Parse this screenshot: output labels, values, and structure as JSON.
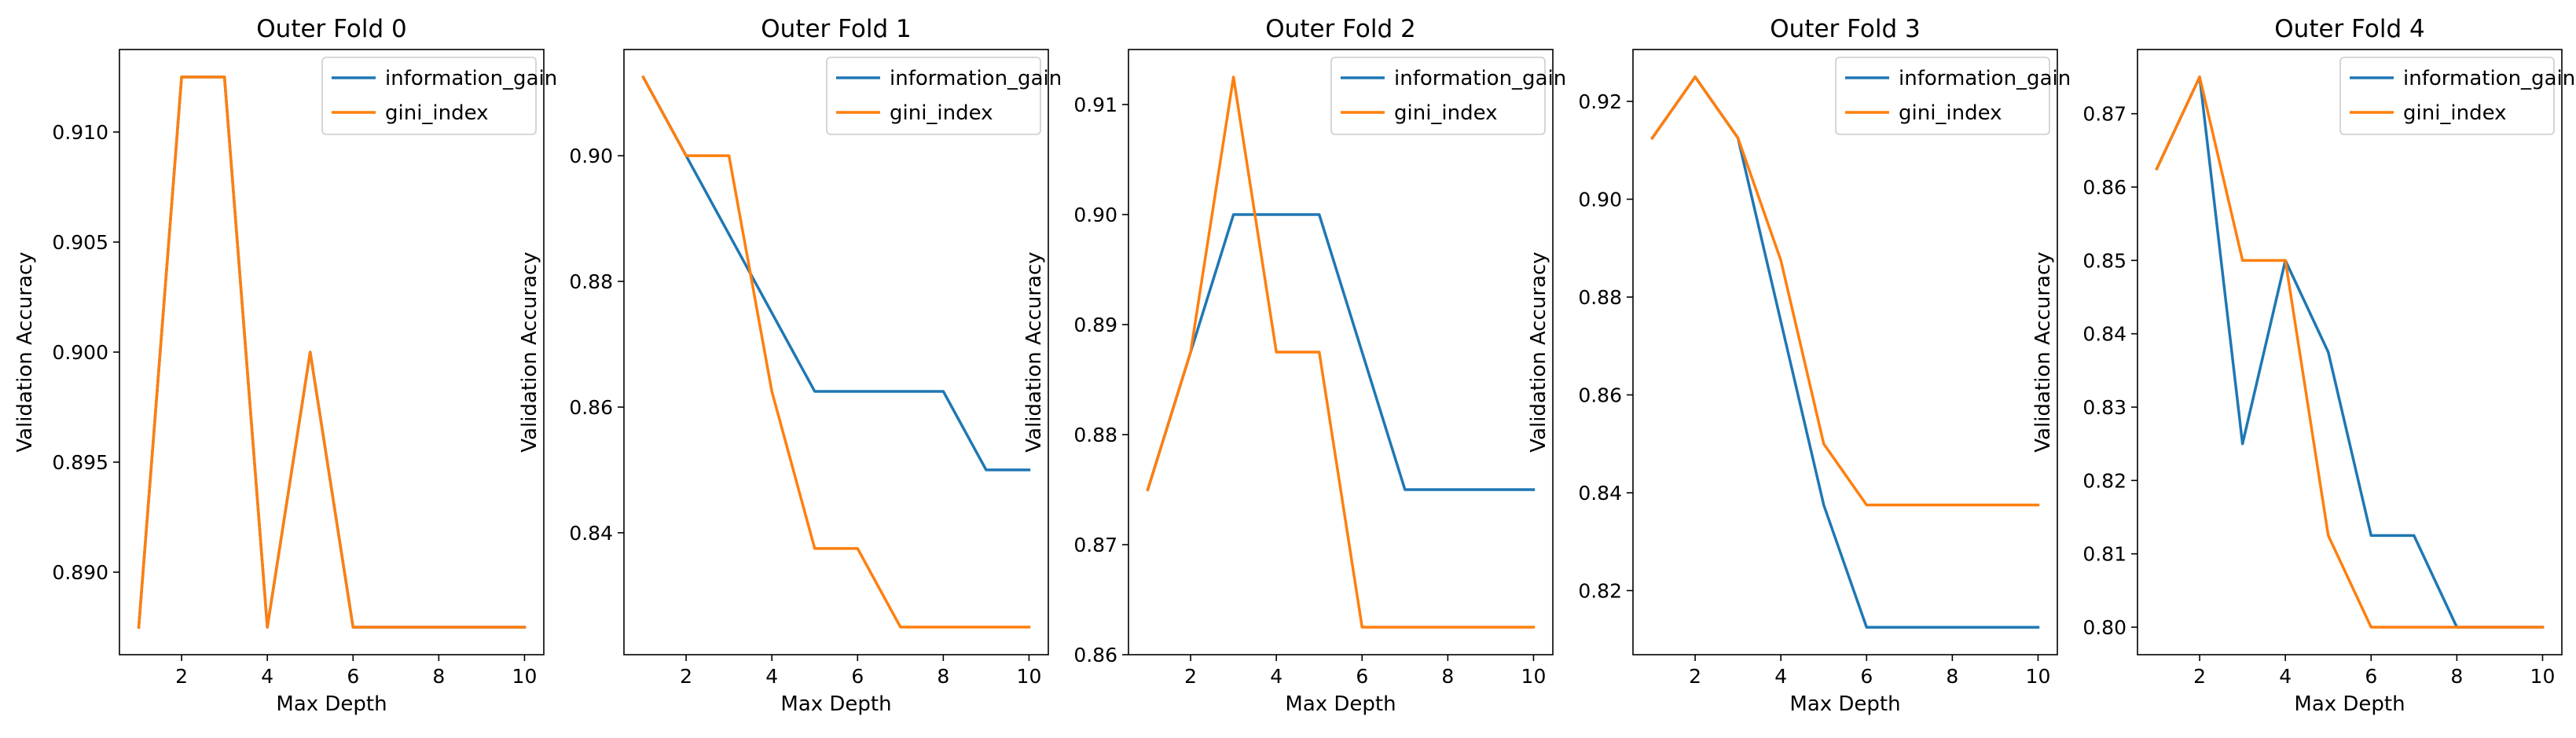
{
  "chart_data": [
    {
      "type": "line",
      "title": "Outer Fold 0",
      "xlabel": "Max Depth",
      "ylabel": "Validation Accuracy",
      "x": [
        1,
        2,
        3,
        4,
        5,
        6,
        7,
        8,
        9,
        10
      ],
      "series": [
        {
          "name": "information_gain",
          "color": "#1f77b4",
          "values": [
            0.8875,
            0.9125,
            0.9125,
            0.8875,
            0.9,
            0.8875,
            0.8875,
            0.8875,
            0.8875,
            0.8875
          ]
        },
        {
          "name": "gini_index",
          "color": "#ff7f0e",
          "values": [
            0.8875,
            0.9125,
            0.9125,
            0.8875,
            0.9,
            0.8875,
            0.8875,
            0.8875,
            0.8875,
            0.8875
          ]
        }
      ],
      "xlim": [
        0.55,
        10.45
      ],
      "ylim": [
        0.88625,
        0.91375
      ],
      "xticks": [
        2,
        4,
        6,
        8,
        10
      ],
      "xtick_labels": [
        "2",
        "4",
        "6",
        "8",
        "10"
      ],
      "yticks": [
        0.89,
        0.895,
        0.9,
        0.905,
        0.91
      ],
      "ytick_labels": [
        "0.890",
        "0.895",
        "0.900",
        "0.905",
        "0.910"
      ],
      "legend": "top-right",
      "grid": false
    },
    {
      "type": "line",
      "title": "Outer Fold 1",
      "xlabel": "Max Depth",
      "ylabel": "Validation Accuracy",
      "x": [
        1,
        2,
        3,
        4,
        5,
        6,
        7,
        8,
        9,
        10
      ],
      "series": [
        {
          "name": "information_gain",
          "color": "#1f77b4",
          "values": [
            0.9125,
            0.9,
            0.8875,
            0.875,
            0.8625,
            0.8625,
            0.8625,
            0.8625,
            0.85,
            0.85
          ]
        },
        {
          "name": "gini_index",
          "color": "#ff7f0e",
          "values": [
            0.9125,
            0.9,
            0.9,
            0.8625,
            0.8375,
            0.8375,
            0.825,
            0.825,
            0.825,
            0.825
          ]
        }
      ],
      "xlim": [
        0.55,
        10.45
      ],
      "ylim": [
        0.8206,
        0.9169
      ],
      "xticks": [
        2,
        4,
        6,
        8,
        10
      ],
      "xtick_labels": [
        "2",
        "4",
        "6",
        "8",
        "10"
      ],
      "yticks": [
        0.84,
        0.86,
        0.88,
        0.9
      ],
      "ytick_labels": [
        "0.84",
        "0.86",
        "0.88",
        "0.90"
      ],
      "legend": "top-right",
      "grid": false
    },
    {
      "type": "line",
      "title": "Outer Fold 2",
      "xlabel": "Max Depth",
      "ylabel": "Validation Accuracy",
      "x": [
        1,
        2,
        3,
        4,
        5,
        6,
        7,
        8,
        9,
        10
      ],
      "series": [
        {
          "name": "information_gain",
          "color": "#1f77b4",
          "values": [
            0.875,
            0.8875,
            0.9,
            0.9,
            0.9,
            0.8875,
            0.875,
            0.875,
            0.875,
            0.875
          ]
        },
        {
          "name": "gini_index",
          "color": "#ff7f0e",
          "values": [
            0.875,
            0.8875,
            0.9125,
            0.8875,
            0.8875,
            0.8625,
            0.8625,
            0.8625,
            0.8625,
            0.8625
          ]
        }
      ],
      "xlim": [
        0.55,
        10.45
      ],
      "ylim": [
        0.86,
        0.915
      ],
      "xticks": [
        2,
        4,
        6,
        8,
        10
      ],
      "xtick_labels": [
        "2",
        "4",
        "6",
        "8",
        "10"
      ],
      "yticks": [
        0.86,
        0.87,
        0.88,
        0.89,
        0.9,
        0.91
      ],
      "ytick_labels": [
        "0.86",
        "0.87",
        "0.88",
        "0.89",
        "0.90",
        "0.91"
      ],
      "legend": "top-right",
      "grid": false
    },
    {
      "type": "line",
      "title": "Outer Fold 3",
      "xlabel": "Max Depth",
      "ylabel": "Validation Accuracy",
      "x": [
        1,
        2,
        3,
        4,
        5,
        6,
        7,
        8,
        9,
        10
      ],
      "series": [
        {
          "name": "information_gain",
          "color": "#1f77b4",
          "values": [
            0.9125,
            0.925,
            0.9125,
            0.875,
            0.8375,
            0.8125,
            0.8125,
            0.8125,
            0.8125,
            0.8125
          ]
        },
        {
          "name": "gini_index",
          "color": "#ff7f0e",
          "values": [
            0.9125,
            0.925,
            0.9125,
            0.8875,
            0.85,
            0.8375,
            0.8375,
            0.8375,
            0.8375,
            0.8375
          ]
        }
      ],
      "xlim": [
        0.55,
        10.45
      ],
      "ylim": [
        0.8069,
        0.9306
      ],
      "xticks": [
        2,
        4,
        6,
        8,
        10
      ],
      "xtick_labels": [
        "2",
        "4",
        "6",
        "8",
        "10"
      ],
      "yticks": [
        0.82,
        0.84,
        0.86,
        0.88,
        0.9,
        0.92
      ],
      "ytick_labels": [
        "0.82",
        "0.84",
        "0.86",
        "0.88",
        "0.90",
        "0.92"
      ],
      "legend": "top-right",
      "grid": false
    },
    {
      "type": "line",
      "title": "Outer Fold 4",
      "xlabel": "Max Depth",
      "ylabel": "Validation Accuracy",
      "x": [
        1,
        2,
        3,
        4,
        5,
        6,
        7,
        8,
        9,
        10
      ],
      "series": [
        {
          "name": "information_gain",
          "color": "#1f77b4",
          "values": [
            0.8625,
            0.875,
            0.825,
            0.85,
            0.8375,
            0.8125,
            0.8125,
            0.8,
            0.8,
            0.8
          ]
        },
        {
          "name": "gini_index",
          "color": "#ff7f0e",
          "values": [
            0.8625,
            0.875,
            0.85,
            0.85,
            0.8125,
            0.8,
            0.8,
            0.8,
            0.8,
            0.8
          ]
        }
      ],
      "xlim": [
        0.55,
        10.45
      ],
      "ylim": [
        0.79625,
        0.87875
      ],
      "xticks": [
        2,
        4,
        6,
        8,
        10
      ],
      "xtick_labels": [
        "2",
        "4",
        "6",
        "8",
        "10"
      ],
      "yticks": [
        0.8,
        0.81,
        0.82,
        0.83,
        0.84,
        0.85,
        0.86,
        0.87
      ],
      "ytick_labels": [
        "0.80",
        "0.81",
        "0.82",
        "0.83",
        "0.84",
        "0.85",
        "0.86",
        "0.87"
      ],
      "legend": "top-right",
      "grid": false
    }
  ]
}
